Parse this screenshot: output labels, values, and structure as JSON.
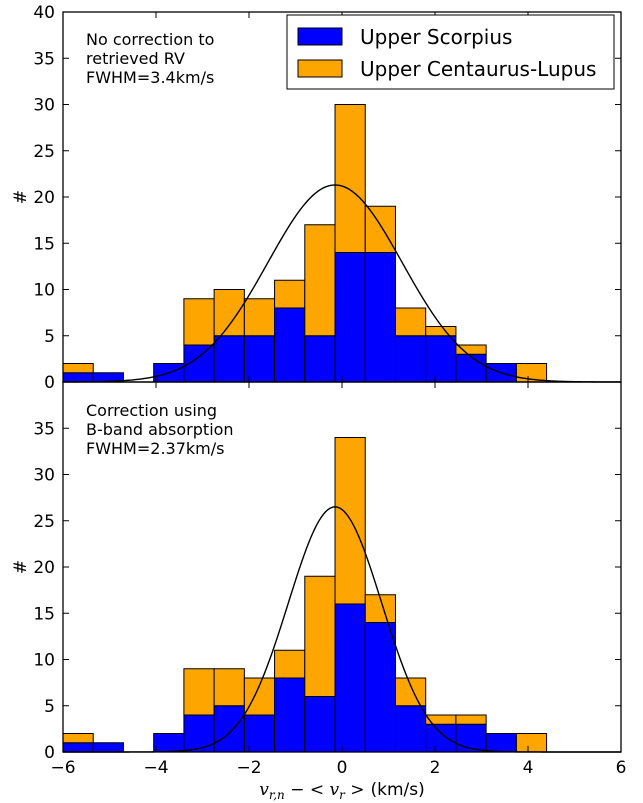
{
  "chart_data": [
    {
      "type": "bar",
      "stacked": true,
      "panel": "top",
      "annotation": [
        "No correction to",
        "retrieved RV",
        "FWHM=3.4km/s"
      ],
      "ylabel": "#",
      "xlim": [
        -6,
        6
      ],
      "ylim": [
        0,
        40
      ],
      "yticks": [
        0,
        5,
        10,
        15,
        20,
        25,
        30,
        35,
        40
      ],
      "bin_edges": [
        -6.0,
        -5.35,
        -4.7,
        -4.05,
        -3.4,
        -2.75,
        -2.1,
        -1.45,
        -0.8,
        -0.15,
        0.5,
        1.15,
        1.8,
        2.45,
        3.1,
        3.75,
        4.4
      ],
      "series": [
        {
          "name": "Upper Scorpius",
          "color": "#0000ff",
          "values": [
            1,
            1,
            0,
            2,
            4,
            5,
            5,
            8,
            5,
            14,
            14,
            5,
            5,
            3,
            2,
            0
          ]
        },
        {
          "name": "Upper Centaurus-Lupus",
          "color": "#ffa500",
          "values": [
            1,
            0,
            0,
            0,
            5,
            5,
            4,
            3,
            12,
            16,
            5,
            3,
            1,
            1,
            0,
            2
          ]
        }
      ],
      "fit": {
        "type": "gaussian",
        "mean": -0.15,
        "fwhm": 3.4,
        "amplitude": 21.3
      }
    },
    {
      "type": "bar",
      "stacked": true,
      "panel": "bottom",
      "annotation": [
        "Correction using",
        "B-band absorption",
        "FWHM=2.37km/s"
      ],
      "ylabel": "#",
      "xlabel_math": "v",
      "xlabel_sub": "r,n",
      "xlabel_mid": " − < v",
      "xlabel_sub2": "r",
      "xlabel_end": " >",
      "xlabel_units": "(km/s)",
      "xlim": [
        -6,
        6
      ],
      "ylim": [
        0,
        40
      ],
      "yticks": [
        0,
        5,
        10,
        15,
        20,
        25,
        30,
        35
      ],
      "xticks": [
        -6,
        -4,
        -2,
        0,
        2,
        4,
        6
      ],
      "xtick_labels": [
        "−6",
        "−4",
        "−2",
        "0",
        "2",
        "4",
        "6"
      ],
      "bin_edges": [
        -6.0,
        -5.35,
        -4.7,
        -4.05,
        -3.4,
        -2.75,
        -2.1,
        -1.45,
        -0.8,
        -0.15,
        0.5,
        1.15,
        1.8,
        2.45,
        3.1,
        3.75,
        4.4
      ],
      "series": [
        {
          "name": "Upper Scorpius",
          "color": "#0000ff",
          "values": [
            1,
            1,
            0,
            2,
            4,
            5,
            4,
            8,
            6,
            16,
            14,
            5,
            3,
            3,
            2,
            0
          ]
        },
        {
          "name": "Upper Centaurus-Lupus",
          "color": "#ffa500",
          "values": [
            1,
            0,
            0,
            0,
            5,
            4,
            4,
            3,
            13,
            18,
            3,
            3,
            1,
            1,
            0,
            2
          ]
        }
      ],
      "fit": {
        "type": "gaussian",
        "mean": -0.15,
        "fwhm": 2.37,
        "amplitude": 26.5
      }
    }
  ],
  "legend": {
    "placement": "top-right",
    "items": [
      {
        "label": "Upper Scorpius",
        "color": "#0000ff"
      },
      {
        "label": "Upper Centaurus-Lupus",
        "color": "#ffa500"
      }
    ]
  }
}
